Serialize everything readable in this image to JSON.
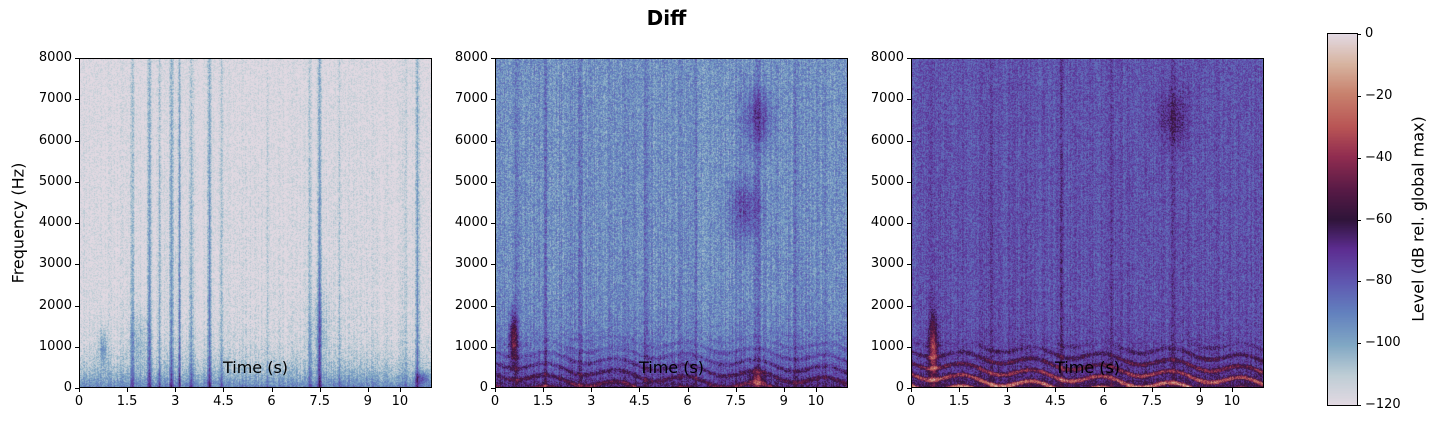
{
  "figure": {
    "title": "Diff"
  },
  "chart_data": {
    "type": "heatmap",
    "title": "Diff",
    "panels": [
      {
        "name": "spectrogram-1",
        "xlabel": "Time (s)",
        "ylabel": "Frequency (Hz)",
        "xlim": [
          0,
          11.0
        ],
        "ylim": [
          0,
          8000
        ],
        "xticks": [
          "0",
          "1.5",
          "3",
          "4.5",
          "6",
          "7.5",
          "9",
          "10"
        ],
        "xtick_values": [
          0,
          1.5,
          3,
          4.5,
          6,
          7.5,
          9,
          10
        ],
        "yticks": [
          "0",
          "1000",
          "2000",
          "3000",
          "4000",
          "5000",
          "6000",
          "7000",
          "8000"
        ],
        "ytick_values": [
          0,
          1000,
          2000,
          3000,
          4000,
          5000,
          6000,
          7000,
          8000
        ],
        "description": "Mostly near -120 dB background (light), sparse blue/purple vertical transients around 1.6-4.2 s, 7.5 s, 10.2 s, low-frequency energy below 600 Hz",
        "level_range_db": [
          -120,
          -85
        ]
      },
      {
        "name": "spectrogram-2",
        "xlabel": "Time (s)",
        "ylabel": "",
        "xlim": [
          0,
          11.0
        ],
        "ylim": [
          0,
          8000
        ],
        "xticks": [
          "0",
          "1.5",
          "3",
          "4.5",
          "6",
          "7.5",
          "9",
          "10"
        ],
        "xtick_values": [
          0,
          1.5,
          3,
          4.5,
          6,
          7.5,
          9,
          10
        ],
        "yticks": [
          "0",
          "1000",
          "2000",
          "3000",
          "4000",
          "5000",
          "6000",
          "7000",
          "8000"
        ],
        "ytick_values": [
          0,
          1000,
          2000,
          3000,
          4000,
          5000,
          6000,
          7000,
          8000
        ],
        "description": "Dense blue noise floor around -95 dB with purple speech energy concentrated below 1400 Hz, red harmonics near 0.8 s and 8 s",
        "level_range_db": [
          -110,
          -40
        ]
      },
      {
        "name": "spectrogram-3",
        "xlabel": "Time (s)",
        "ylabel": "",
        "xlim": [
          0,
          11.0
        ],
        "ylim": [
          0,
          8000
        ],
        "xticks": [
          "0",
          "1.5",
          "3",
          "4.5",
          "6",
          "7.5",
          "9",
          "10"
        ],
        "xtick_values": [
          0,
          1.5,
          3,
          4.5,
          6,
          7.5,
          9,
          10
        ],
        "yticks": [
          "0",
          "1000",
          "2000",
          "3000",
          "4000",
          "5000",
          "6000",
          "7000",
          "8000"
        ],
        "ytick_values": [
          0,
          1000,
          2000,
          3000,
          4000,
          5000,
          6000,
          7000,
          8000
        ],
        "description": "Purple -75 dB background, strong red/orange harmonic speech bands below 800 Hz across the full duration",
        "level_range_db": [
          -95,
          -30
        ]
      }
    ],
    "colorbar": {
      "label": "Level (dB rel. global max)",
      "colormap": "twilight",
      "range": [
        -120,
        0
      ],
      "ticks": [
        "0",
        "−20",
        "−40",
        "−60",
        "−80",
        "−100",
        "−120"
      ],
      "tick_values": [
        0,
        -20,
        -40,
        -60,
        -80,
        -100,
        -120
      ]
    },
    "grid": false,
    "legend": null
  }
}
